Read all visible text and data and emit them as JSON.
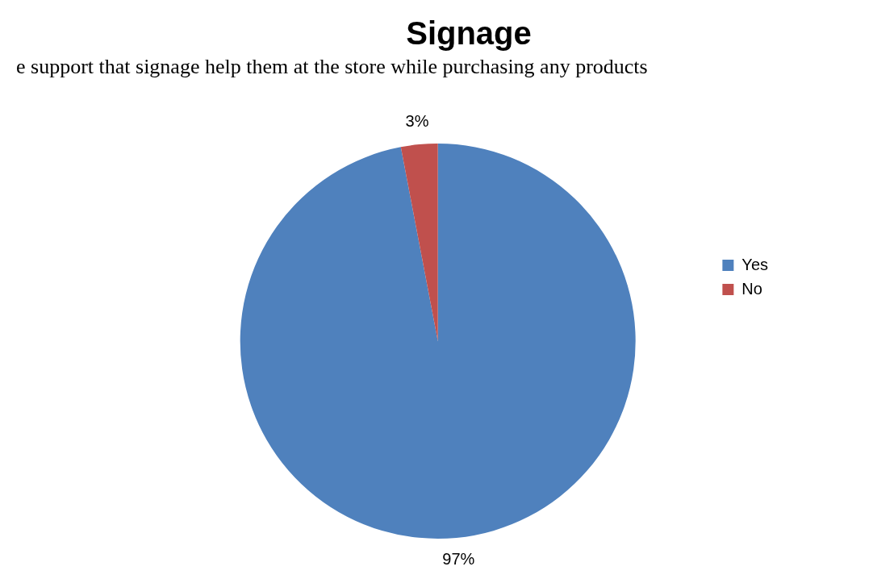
{
  "chart_data": {
    "type": "pie",
    "title": "Signage",
    "annotations": [
      "e support that signage help them at the store while purchasing any products"
    ],
    "categories": [
      "Yes",
      "No"
    ],
    "values": [
      97,
      3
    ],
    "colors": [
      "#4f81bd",
      "#c0504d"
    ],
    "value_labels": [
      "97%",
      "3%"
    ],
    "legend": "right"
  }
}
